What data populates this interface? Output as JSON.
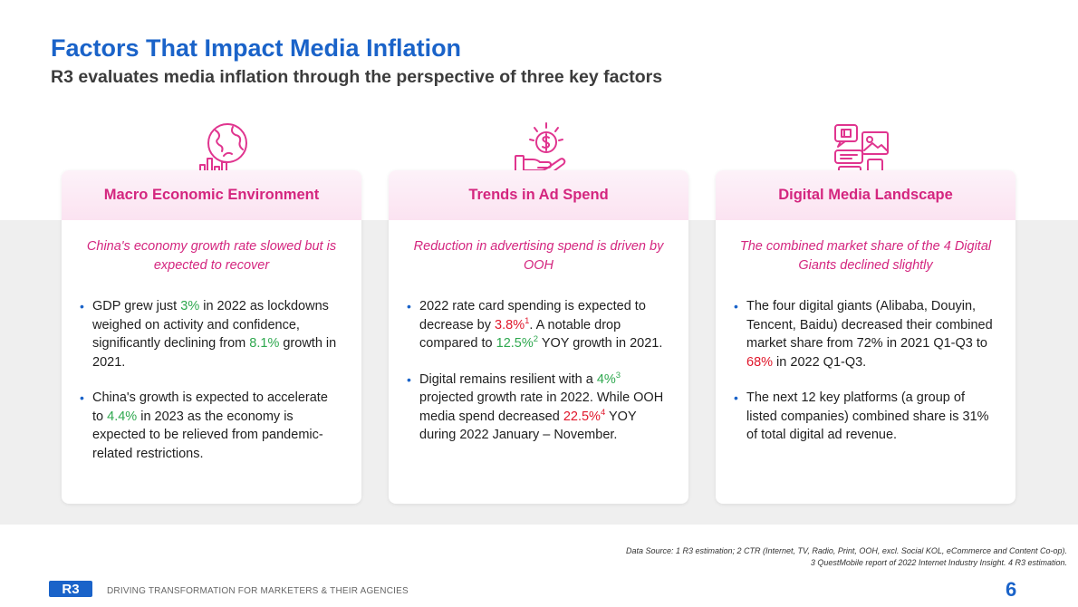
{
  "header": {
    "title": "Factors That Impact Media Inflation",
    "subtitle": "R3 evaluates media inflation through the perspective of three key factors"
  },
  "colors": {
    "accent_blue": "#1a63c9",
    "accent_pink": "#d4267f",
    "positive_green": "#2fa84f",
    "negative_red": "#e0172b"
  },
  "cards": [
    {
      "icon": "globe-chart-icon",
      "title": "Macro Economic Environment",
      "lead": "China's economy growth rate slowed but is expected to recover",
      "bullets": [
        {
          "p1": "GDP grew just ",
          "h1": "3%",
          "p2": " in 2022 as lockdowns weighed on activity and confidence, significantly declining from ",
          "h2": "8.1%",
          "p3": " growth in 2021."
        },
        {
          "p1": "China's growth is expected to accelerate to ",
          "h1": "4.4%",
          "p2": " in 2023 as the economy is expected to be relieved from pandemic-related restrictions."
        }
      ]
    },
    {
      "icon": "hand-dollar-icon",
      "title": "Trends in Ad Spend",
      "lead": "Reduction in advertising spend is driven by OOH",
      "bullets": [
        {
          "p1": "2022 rate card spending is expected to decrease by ",
          "h1": "3.8%",
          "s1": "1",
          "p2": ". A notable drop compared to ",
          "h2": "12.5%",
          "s2": "2",
          "p3": " YOY growth in 2021."
        },
        {
          "p1": "Digital remains resilient with a ",
          "h1": "4%",
          "s1": "3",
          "p2": " projected growth rate in 2022. While OOH media spend decreased ",
          "h2": "22.5%",
          "s2": "4",
          "p3": " YOY during 2022 January – November."
        }
      ]
    },
    {
      "icon": "digital-devices-icon",
      "title": "Digital Media Landscape",
      "lead": "The combined market share of the 4 Digital Giants declined slightly",
      "bullets": [
        {
          "p1": "The four digital giants (Alibaba, Douyin, Tencent, Baidu) decreased their combined market share from 72% in 2021 Q1-Q3 to ",
          "h1": "68%",
          "p2": " in 2022 Q1-Q3."
        },
        {
          "p1": "The next 12 key platforms (a group of listed companies) combined share is 31% of total digital ad revenue."
        }
      ]
    }
  ],
  "footnote": {
    "line1": "Data Source: 1 R3 estimation; 2 CTR (Internet, TV, Radio, Print, OOH, excl. Social KOL, eCommerce and Content Co-op).",
    "line2": "3 QuestMobile report of 2022 Internet Industry Insight. 4 R3 estimation."
  },
  "footer": {
    "logo_text": "R3",
    "tagline": "DRIVING TRANSFORMATION FOR MARKETERS & THEIR AGENCIES",
    "page_number": "6"
  }
}
